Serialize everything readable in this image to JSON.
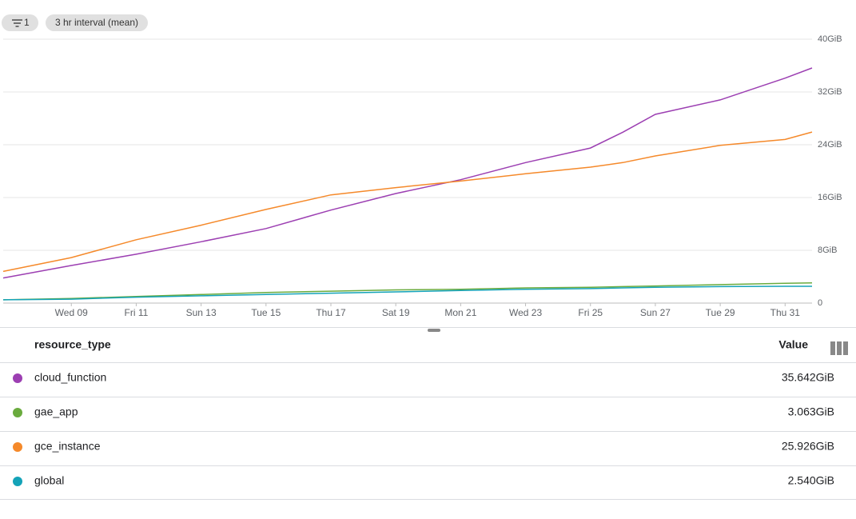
{
  "toolbar": {
    "filter_count": 1,
    "interval": "3 hr interval (mean)"
  },
  "chart_data": {
    "type": "line",
    "x": [
      6.9,
      9,
      11,
      13,
      15,
      17,
      19,
      21,
      23,
      25,
      26,
      27,
      29,
      31,
      31.83
    ],
    "xlim": [
      6.9,
      31.83
    ],
    "xticks": [
      {
        "value": 9,
        "label": "Wed 09"
      },
      {
        "value": 11,
        "label": "Fri 11"
      },
      {
        "value": 13,
        "label": "Sun 13"
      },
      {
        "value": 15,
        "label": "Tue 15"
      },
      {
        "value": 17,
        "label": "Thu 17"
      },
      {
        "value": 19,
        "label": "Sat 19"
      },
      {
        "value": 21,
        "label": "Mon 21"
      },
      {
        "value": 23,
        "label": "Wed 23"
      },
      {
        "value": 25,
        "label": "Fri 25"
      },
      {
        "value": 27,
        "label": "Sun 27"
      },
      {
        "value": 29,
        "label": "Tue 29"
      },
      {
        "value": 31,
        "label": "Thu 31"
      }
    ],
    "ylim": [
      0,
      40
    ],
    "yticks": [
      0,
      {
        "value": 8,
        "label": "8GiB"
      },
      {
        "value": 16,
        "label": "16GiB"
      },
      {
        "value": 24,
        "label": "24GiB"
      },
      {
        "value": 32,
        "label": "32GiB"
      },
      {
        "value": 40,
        "label": "40GiB"
      }
    ],
    "grid": true,
    "series": [
      {
        "name": "cloud_function",
        "color": "#9c3fb2",
        "values": [
          3.8,
          5.7,
          7.4,
          9.3,
          11.3,
          14.1,
          16.6,
          18.7,
          21.3,
          23.5,
          25.9,
          28.6,
          30.8,
          34.1,
          35.642
        ]
      },
      {
        "name": "gae_app",
        "color": "#6aab3e",
        "values": [
          0.5,
          0.7,
          1.0,
          1.3,
          1.6,
          1.8,
          2.0,
          2.1,
          2.3,
          2.4,
          2.5,
          2.6,
          2.8,
          3.0,
          3.063
        ]
      },
      {
        "name": "gce_instance",
        "color": "#f5892a",
        "values": [
          4.8,
          6.9,
          9.6,
          11.8,
          14.2,
          16.4,
          17.5,
          18.5,
          19.6,
          20.6,
          21.3,
          22.3,
          23.9,
          24.8,
          25.926
        ]
      },
      {
        "name": "global",
        "color": "#14a3b8",
        "values": [
          0.5,
          0.6,
          0.9,
          1.1,
          1.3,
          1.5,
          1.7,
          1.9,
          2.1,
          2.2,
          2.3,
          2.4,
          2.5,
          2.54,
          2.54
        ]
      }
    ]
  },
  "table": {
    "columns": [
      "resource_type",
      "Value"
    ],
    "values": [
      "35.642GiB",
      "3.063GiB",
      "25.926GiB",
      "2.540GiB"
    ]
  }
}
